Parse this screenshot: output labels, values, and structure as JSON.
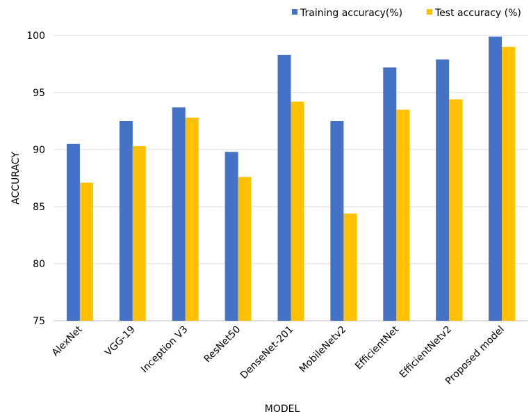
{
  "chart_data": {
    "type": "bar",
    "categories": [
      "AlexNet",
      "VGG-19",
      "Inception V3",
      "ResNet50",
      "DenseNet-201",
      "MobileNetv2",
      "EfficientNet",
      "EfficientNetv2",
      "Proposed model"
    ],
    "series": [
      {
        "name": "Training accuracy(%)",
        "color": "#4472C4",
        "values": [
          90.5,
          92.5,
          93.7,
          89.8,
          98.3,
          92.5,
          97.2,
          97.9,
          99.9
        ]
      },
      {
        "name": "Test accuracy (%)",
        "color": "#FFC000",
        "values": [
          87.1,
          90.3,
          92.8,
          87.6,
          94.2,
          84.4,
          93.5,
          94.4,
          99.0
        ]
      }
    ],
    "xlabel": "MODEL",
    "ylabel": "ACCURACY",
    "ylim": [
      75,
      100
    ],
    "yticks": [
      75,
      80,
      85,
      90,
      95,
      100
    ],
    "grid": true,
    "legend_position": "top-right"
  }
}
